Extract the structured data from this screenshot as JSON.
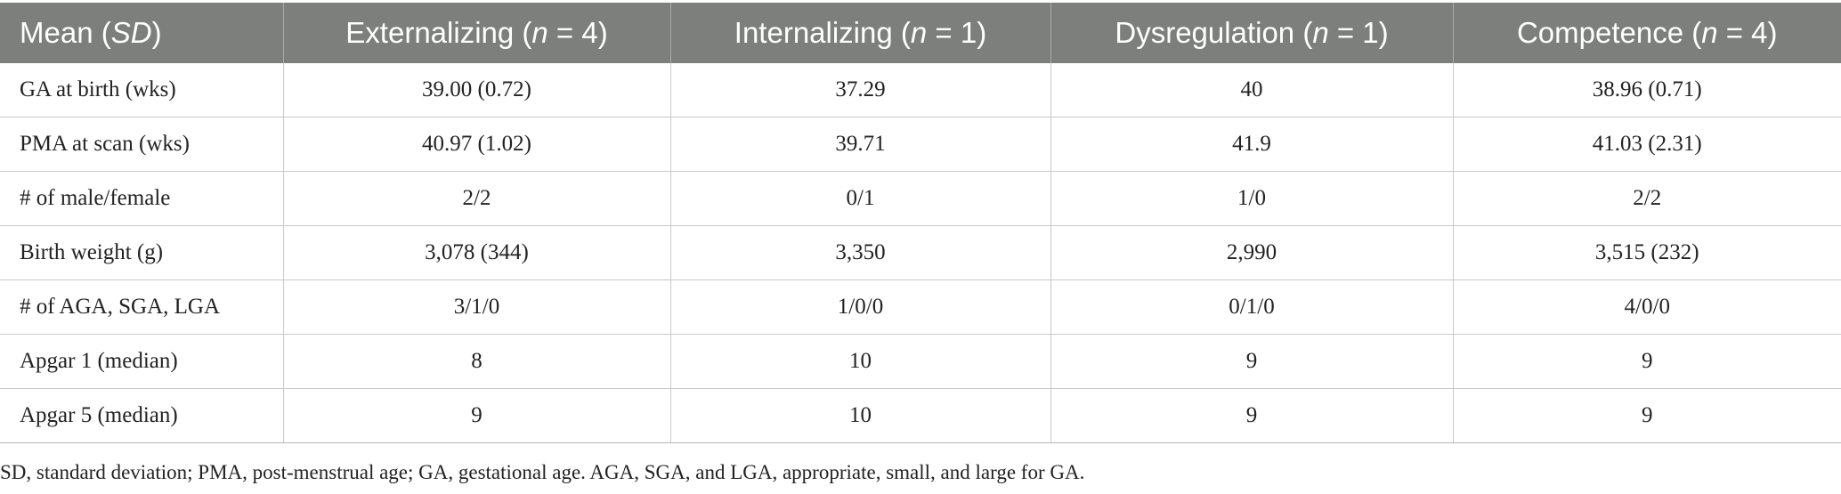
{
  "table": {
    "headers": [
      {
        "before": "Mean (",
        "italic": "SD",
        "after": ")"
      },
      {
        "before": "Externalizing (",
        "italic": "n",
        "after": " = 4)"
      },
      {
        "before": "Internalizing (",
        "italic": "n",
        "after": " = 1)"
      },
      {
        "before": "Dysregulation (",
        "italic": "n",
        "after": " = 1)"
      },
      {
        "before": "Competence (",
        "italic": "n",
        "after": " = 4)"
      }
    ],
    "rows": [
      [
        "GA at birth (wks)",
        "39.00 (0.72)",
        "37.29",
        "40",
        "38.96 (0.71)"
      ],
      [
        "PMA at scan (wks)",
        "40.97 (1.02)",
        "39.71",
        "41.9",
        "41.03 (2.31)"
      ],
      [
        "# of male/female",
        "2/2",
        "0/1",
        "1/0",
        "2/2"
      ],
      [
        "Birth weight (g)",
        "3,078 (344)",
        "3,350",
        "2,990",
        "3,515 (232)"
      ],
      [
        "# of AGA, SGA, LGA",
        "3/1/0",
        "1/0/0",
        "0/1/0",
        "4/0/0"
      ],
      [
        "Apgar 1 (median)",
        "8",
        "10",
        "9",
        "9"
      ],
      [
        "Apgar 5 (median)",
        "9",
        "10",
        "9",
        "9"
      ]
    ]
  },
  "footnote": "SD, standard deviation; PMA, post-menstrual age; GA, gestational age. AGA, SGA, and LGA, appropriate, small, and large for GA.",
  "colors": {
    "header_background": "#7d7f7c",
    "header_text": "#ffffff",
    "grid_line": "#c9c9c9",
    "body_text": "#222222"
  }
}
